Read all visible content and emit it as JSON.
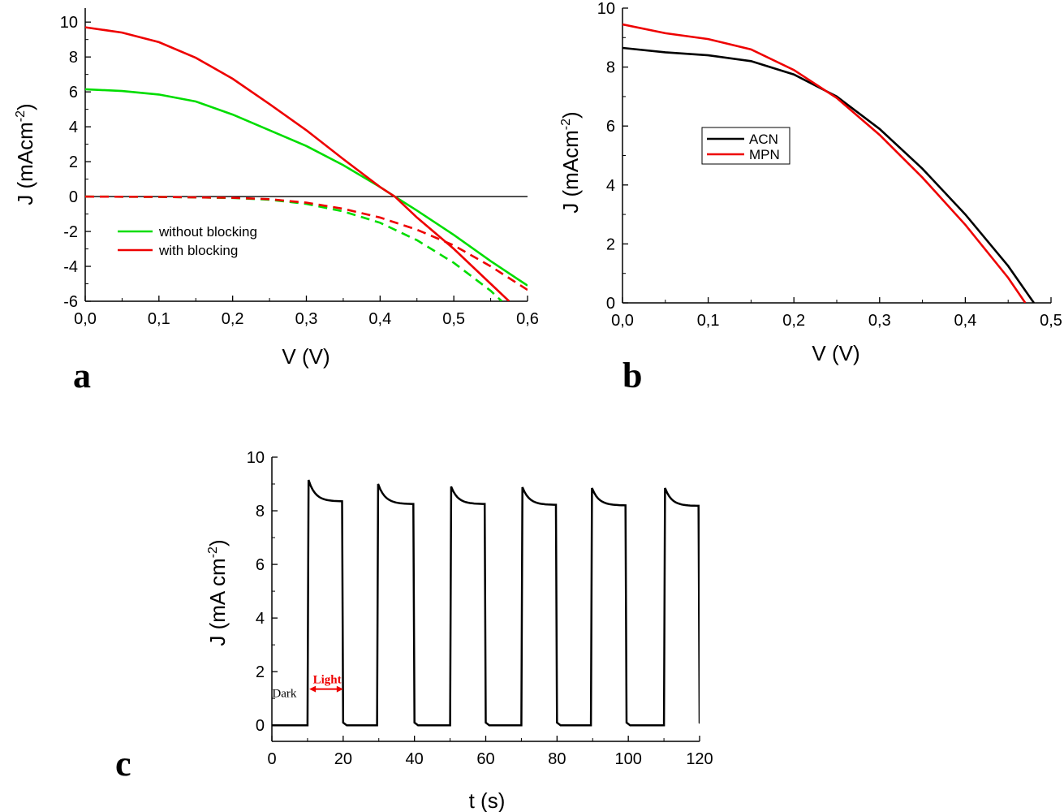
{
  "figure": {
    "panels": [
      "a",
      "b",
      "c"
    ]
  },
  "chart_data": [
    {
      "panel": "a",
      "type": "line",
      "xlabel": "V (V)",
      "ylabel": "J (mAcm",
      "ylabel_sup": "-2",
      "ylabel_end": ")",
      "xlim": [
        0,
        0.6
      ],
      "ylim": [
        -6,
        10.8
      ],
      "xticks": [
        0,
        0.1,
        0.2,
        0.3,
        0.4,
        0.5,
        0.6
      ],
      "xtick_labels": [
        "0,0",
        "0,1",
        "0,2",
        "0,3",
        "0,4",
        "0,5",
        "0,6"
      ],
      "yticks": [
        -6,
        -4,
        -2,
        0,
        2,
        4,
        6,
        8,
        10
      ],
      "ytick_labels": [
        "-6",
        "-4",
        "-2",
        "0",
        "2",
        "4",
        "6",
        "8",
        "10"
      ],
      "zero_line": true,
      "grid": false,
      "legend_position": "lower-left",
      "legend": [
        {
          "label": "without blocking",
          "color": "#00dd00"
        },
        {
          "label": "with blocking",
          "color": "#ee0000"
        }
      ],
      "series": [
        {
          "name": "without blocking",
          "color": "#00dd00",
          "dash": false,
          "x": [
            0.0,
            0.05,
            0.1,
            0.15,
            0.2,
            0.25,
            0.3,
            0.35,
            0.4,
            0.42,
            0.45,
            0.5,
            0.55,
            0.6
          ],
          "y": [
            6.15,
            6.05,
            5.85,
            5.45,
            4.7,
            3.8,
            2.9,
            1.8,
            0.55,
            0.0,
            -0.8,
            -2.2,
            -3.7,
            -5.1
          ]
        },
        {
          "name": "with blocking",
          "color": "#ee0000",
          "dash": false,
          "x": [
            0.0,
            0.05,
            0.1,
            0.15,
            0.2,
            0.25,
            0.3,
            0.35,
            0.4,
            0.42,
            0.45,
            0.5,
            0.55,
            0.575
          ],
          "y": [
            9.7,
            9.4,
            8.85,
            7.95,
            6.75,
            5.3,
            3.8,
            2.15,
            0.55,
            0.0,
            -1.2,
            -3.0,
            -5.0,
            -6.0
          ]
        },
        {
          "name": "without blocking (dark)",
          "color": "#00dd00",
          "dash": true,
          "x": [
            0.0,
            0.1,
            0.2,
            0.25,
            0.3,
            0.35,
            0.4,
            0.45,
            0.5,
            0.55,
            0.565
          ],
          "y": [
            0.0,
            -0.02,
            -0.08,
            -0.18,
            -0.42,
            -0.85,
            -1.5,
            -2.5,
            -3.8,
            -5.4,
            -6.0
          ]
        },
        {
          "name": "with blocking (dark)",
          "color": "#ee0000",
          "dash": true,
          "x": [
            0.0,
            0.1,
            0.2,
            0.25,
            0.3,
            0.35,
            0.4,
            0.45,
            0.5,
            0.55,
            0.6
          ],
          "y": [
            0.0,
            -0.02,
            -0.07,
            -0.15,
            -0.35,
            -0.7,
            -1.2,
            -1.9,
            -2.8,
            -4.0,
            -5.35
          ]
        }
      ]
    },
    {
      "panel": "b",
      "type": "line",
      "xlabel": "V (V)",
      "ylabel": "J (mAcm",
      "ylabel_sup": "-2",
      "ylabel_end": ")",
      "xlim": [
        0,
        0.5
      ],
      "ylim": [
        0,
        10
      ],
      "xticks": [
        0,
        0.1,
        0.2,
        0.3,
        0.4,
        0.5
      ],
      "xtick_labels": [
        "0,0",
        "0,1",
        "0,2",
        "0,3",
        "0,4",
        "0,5"
      ],
      "yticks": [
        0,
        2,
        4,
        6,
        8,
        10
      ],
      "ytick_labels": [
        "0",
        "2",
        "4",
        "6",
        "8",
        "10"
      ],
      "grid": false,
      "legend_position": "center-left",
      "legend": [
        {
          "label": "ACN",
          "color": "#000000"
        },
        {
          "label": "MPN",
          "color": "#ee0000"
        }
      ],
      "series": [
        {
          "name": "ACN",
          "color": "#000000",
          "x": [
            0.0,
            0.05,
            0.1,
            0.15,
            0.2,
            0.25,
            0.3,
            0.35,
            0.4,
            0.45,
            0.48
          ],
          "y": [
            8.65,
            8.5,
            8.4,
            8.2,
            7.75,
            7.0,
            5.9,
            4.55,
            3.0,
            1.25,
            0.0
          ]
        },
        {
          "name": "MPN",
          "color": "#ee0000",
          "x": [
            0.0,
            0.05,
            0.1,
            0.15,
            0.2,
            0.25,
            0.3,
            0.35,
            0.4,
            0.45,
            0.47
          ],
          "y": [
            9.45,
            9.15,
            8.95,
            8.6,
            7.9,
            6.95,
            5.7,
            4.25,
            2.65,
            0.85,
            0.0
          ]
        }
      ]
    },
    {
      "panel": "c",
      "type": "line",
      "xlabel": "t (s)",
      "ylabel": "J (mA cm",
      "ylabel_sup": "-2",
      "ylabel_end": ")",
      "xlim": [
        0,
        120
      ],
      "ylim": [
        -0.6,
        10
      ],
      "xticks": [
        0,
        20,
        40,
        60,
        80,
        100,
        120
      ],
      "xtick_labels": [
        "0",
        "20",
        "40",
        "60",
        "80",
        "100",
        "120"
      ],
      "yticks": [
        0,
        2,
        4,
        6,
        8,
        10
      ],
      "ytick_labels": [
        "0",
        "2",
        "4",
        "6",
        "8",
        "10"
      ],
      "grid": false,
      "annotations": [
        {
          "text": "Dark",
          "color": "#000000",
          "x": 3.5,
          "y": 1.2
        },
        {
          "text": "Light",
          "color": "#ee0000",
          "x": 15.5,
          "y": 1.5
        }
      ],
      "light_arrow": {
        "x1": 10.5,
        "x2": 20,
        "y": 1.35
      },
      "pulses": [
        {
          "on": 10,
          "off": 20,
          "peak": 9.15,
          "end": 8.35
        },
        {
          "on": 29.5,
          "off": 40,
          "peak": 9.0,
          "end": 8.25
        },
        {
          "on": 50,
          "off": 60,
          "peak": 8.9,
          "end": 8.25
        },
        {
          "on": 70,
          "off": 80,
          "peak": 8.88,
          "end": 8.22
        },
        {
          "on": 89.5,
          "off": 99.5,
          "peak": 8.85,
          "end": 8.2
        },
        {
          "on": 110,
          "off": 120,
          "peak": 8.85,
          "end": 8.18
        }
      ],
      "series": [
        {
          "name": "",
          "color": "#000000"
        }
      ]
    }
  ]
}
